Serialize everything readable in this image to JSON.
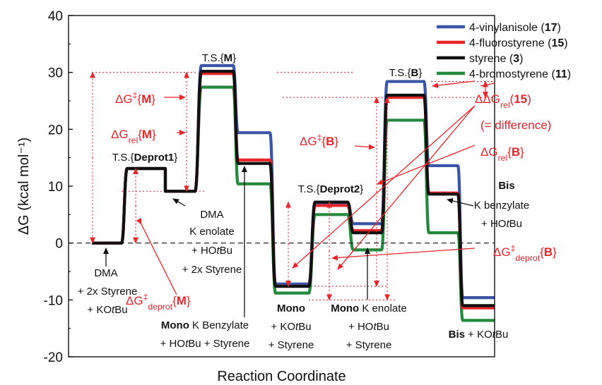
{
  "chart_data": {
    "type": "line",
    "ylabel": "ΔG (kcal mol⁻¹)",
    "xlabel": "Reaction Coordinate",
    "ylim": [
      -20,
      40
    ],
    "yticks": [
      -20,
      -10,
      0,
      10,
      20,
      30,
      40
    ],
    "species": [
      "DMA",
      "T.S.{Deprot1}",
      "DMA K enolate",
      "T.S.{M}",
      "Mono K Benzylate",
      "Mono",
      "T.S.{Deprot2}",
      "Mono K enolate",
      "T.S.{B}",
      "Bis K benzylate",
      "Bis"
    ],
    "series": [
      {
        "name": "4-vinylanisole (17)",
        "color": "#3b55a6",
        "values": [
          0,
          13.1,
          9.1,
          31.2,
          19.4,
          -7.2,
          7.1,
          3.4,
          28.4,
          13.6,
          -9.6
        ]
      },
      {
        "name": "4-fluorostyrene (15)",
        "color": "#e8262b",
        "values": [
          0,
          13.1,
          9.1,
          29.8,
          14.6,
          -7.6,
          6.6,
          2.2,
          25.6,
          8.8,
          -11.4
        ]
      },
      {
        "name": "styrene (3)",
        "color": "#111111",
        "values": [
          0,
          13.1,
          9.1,
          30.2,
          14.0,
          -7.6,
          7.2,
          1.8,
          26.0,
          8.6,
          -11.0
        ]
      },
      {
        "name": "4-bromostyrene (11)",
        "color": "#23893d",
        "values": [
          0,
          13.1,
          9.1,
          27.4,
          10.4,
          -8.8,
          5.0,
          -1.2,
          21.6,
          1.8,
          -13.6
        ]
      }
    ],
    "legend_position": "top-right",
    "grid": false,
    "zero_line": "dashed"
  },
  "labels": {
    "ts_m": "T.S.{M}",
    "ts_deprot1": "T.S.{Deprot1}",
    "ts_deprot2": "T.S.{Deprot2}",
    "ts_b": "T.S.{B}",
    "dma": "DMA",
    "plus_2x_styrene": "+ 2x Styrene",
    "plus_kotbu": "+ KOtBu",
    "dma_k_enolate_1": "DMA",
    "dma_k_enolate_2": "K enolate",
    "plus_hotbu": "+ HOtBu",
    "mono_k_benzylate": "Mono K Benzylate",
    "hotbu_styrene": "+ HOtBu + Styrene",
    "mono": "Mono",
    "plus_styrene": "+ Styrene",
    "mono_k_enolate": "Mono K enolate",
    "bis": "Bis",
    "k_benzylate": "K benzylate",
    "bis_kotbu": "Bis + KOtBu"
  },
  "red_annotations": {
    "dg_ddag_m": "ΔG‡{M}",
    "dg_rel_m": "ΔGrel{M}",
    "dg_ddag_deprot_m": "ΔG‡deprot{M}",
    "ddg_rel_15": "ΔΔGrel(15)",
    "difference": "(= difference)",
    "dg_ddag_b": "ΔG‡{B}",
    "dg_rel_b": "ΔGrel{B}",
    "dg_ddag_deprot_b": "ΔG‡deprot{B}"
  },
  "colors": {
    "red": "#e8262b",
    "blue": "#3b55a6",
    "green": "#23893d",
    "black": "#111111"
  }
}
